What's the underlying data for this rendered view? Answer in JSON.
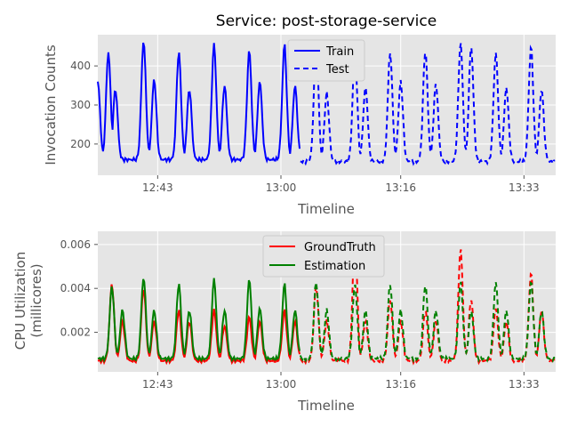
{
  "chart_data": [
    {
      "type": "line",
      "title": "Service: post-storage-service",
      "xlabel": "Timeline",
      "ylabel": "Invocation Counts",
      "x_ticks": [
        "12:43",
        "13:00",
        "13:16",
        "13:33"
      ],
      "y_ticks": [
        "200",
        "300",
        "400"
      ],
      "ylim": [
        120,
        480
      ],
      "grid": true,
      "legend_position": "top-center",
      "series": [
        {
          "name": "Train",
          "color": "#0000ff",
          "linestyle": "solid",
          "peaks": [
            {
              "pos": 0.0,
              "value": 360
            },
            {
              "pos": 0.3,
              "value": 435
            },
            {
              "pos": 0.5,
              "value": 340
            },
            {
              "pos": 1.3,
              "value": 465
            },
            {
              "pos": 1.6,
              "value": 365
            },
            {
              "pos": 2.3,
              "value": 435
            },
            {
              "pos": 2.6,
              "value": 340
            },
            {
              "pos": 3.3,
              "value": 455
            },
            {
              "pos": 3.6,
              "value": 350
            },
            {
              "pos": 4.3,
              "value": 440
            },
            {
              "pos": 4.6,
              "value": 360
            },
            {
              "pos": 5.3,
              "value": 455
            },
            {
              "pos": 5.6,
              "value": 350
            }
          ],
          "valley": 160
        },
        {
          "name": "Test",
          "color": "#0000ff",
          "linestyle": "dashed",
          "peaks": [
            {
              "pos": 6.2,
              "value": 460
            },
            {
              "pos": 6.5,
              "value": 330
            },
            {
              "pos": 7.3,
              "value": 435
            },
            {
              "pos": 7.6,
              "value": 345
            },
            {
              "pos": 8.3,
              "value": 435
            },
            {
              "pos": 8.6,
              "value": 360
            },
            {
              "pos": 9.3,
              "value": 440
            },
            {
              "pos": 9.6,
              "value": 355
            },
            {
              "pos": 10.3,
              "value": 460
            },
            {
              "pos": 10.6,
              "value": 450
            },
            {
              "pos": 11.3,
              "value": 435
            },
            {
              "pos": 11.6,
              "value": 345
            },
            {
              "pos": 12.3,
              "value": 450
            },
            {
              "pos": 12.6,
              "value": 340
            }
          ],
          "valley": 155
        }
      ]
    },
    {
      "type": "line",
      "title": "",
      "xlabel": "Timeline",
      "ylabel": "CPU Utilization (millicores)",
      "ylabel_lines": [
        "CPU Utilization",
        "(millicores)"
      ],
      "x_ticks": [
        "12:43",
        "13:00",
        "13:16",
        "13:33"
      ],
      "y_ticks": [
        "0.002",
        "0.004",
        "0.006"
      ],
      "ylim": [
        0.0002,
        0.0066
      ],
      "grid": true,
      "legend_position": "top-center",
      "split_pos": 5.75,
      "series": [
        {
          "name": "GroundTruth",
          "color": "#ff0000",
          "peaks": [
            {
              "pos": 0.4,
              "value": 0.0042
            },
            {
              "pos": 0.7,
              "value": 0.0025
            },
            {
              "pos": 1.3,
              "value": 0.004
            },
            {
              "pos": 1.6,
              "value": 0.0025
            },
            {
              "pos": 2.3,
              "value": 0.003
            },
            {
              "pos": 2.6,
              "value": 0.0025
            },
            {
              "pos": 3.3,
              "value": 0.003
            },
            {
              "pos": 3.6,
              "value": 0.0023
            },
            {
              "pos": 4.3,
              "value": 0.0027
            },
            {
              "pos": 4.6,
              "value": 0.0025
            },
            {
              "pos": 5.3,
              "value": 0.003
            },
            {
              "pos": 5.6,
              "value": 0.0025
            },
            {
              "pos": 6.2,
              "value": 0.0041
            },
            {
              "pos": 6.5,
              "value": 0.0025
            },
            {
              "pos": 7.3,
              "value": 0.0064
            },
            {
              "pos": 7.6,
              "value": 0.0025
            },
            {
              "pos": 8.3,
              "value": 0.0035
            },
            {
              "pos": 8.6,
              "value": 0.0025
            },
            {
              "pos": 9.3,
              "value": 0.003
            },
            {
              "pos": 9.6,
              "value": 0.0025
            },
            {
              "pos": 10.3,
              "value": 0.0058
            },
            {
              "pos": 10.6,
              "value": 0.0035
            },
            {
              "pos": 11.3,
              "value": 0.0031
            },
            {
              "pos": 11.6,
              "value": 0.0025
            },
            {
              "pos": 12.3,
              "value": 0.0047
            },
            {
              "pos": 12.6,
              "value": 0.003
            }
          ],
          "valley": 0.0007
        },
        {
          "name": "Estimation",
          "color": "#008000",
          "peaks": [
            {
              "pos": 0.4,
              "value": 0.0041
            },
            {
              "pos": 0.7,
              "value": 0.003
            },
            {
              "pos": 1.3,
              "value": 0.0045
            },
            {
              "pos": 1.6,
              "value": 0.003
            },
            {
              "pos": 2.3,
              "value": 0.0042
            },
            {
              "pos": 2.6,
              "value": 0.003
            },
            {
              "pos": 3.3,
              "value": 0.0044
            },
            {
              "pos": 3.6,
              "value": 0.003
            },
            {
              "pos": 4.3,
              "value": 0.0044
            },
            {
              "pos": 4.6,
              "value": 0.0031
            },
            {
              "pos": 5.3,
              "value": 0.0042
            },
            {
              "pos": 5.6,
              "value": 0.003
            },
            {
              "pos": 6.2,
              "value": 0.0043
            },
            {
              "pos": 6.5,
              "value": 0.003
            },
            {
              "pos": 7.3,
              "value": 0.0042
            },
            {
              "pos": 7.6,
              "value": 0.003
            },
            {
              "pos": 8.3,
              "value": 0.0042
            },
            {
              "pos": 8.6,
              "value": 0.003
            },
            {
              "pos": 9.3,
              "value": 0.0042
            },
            {
              "pos": 9.6,
              "value": 0.003
            },
            {
              "pos": 10.3,
              "value": 0.0043
            },
            {
              "pos": 10.6,
              "value": 0.003
            },
            {
              "pos": 11.3,
              "value": 0.0043
            },
            {
              "pos": 11.6,
              "value": 0.003
            },
            {
              "pos": 12.3,
              "value": 0.0043
            },
            {
              "pos": 12.6,
              "value": 0.003
            }
          ],
          "valley": 0.0008
        }
      ]
    }
  ]
}
